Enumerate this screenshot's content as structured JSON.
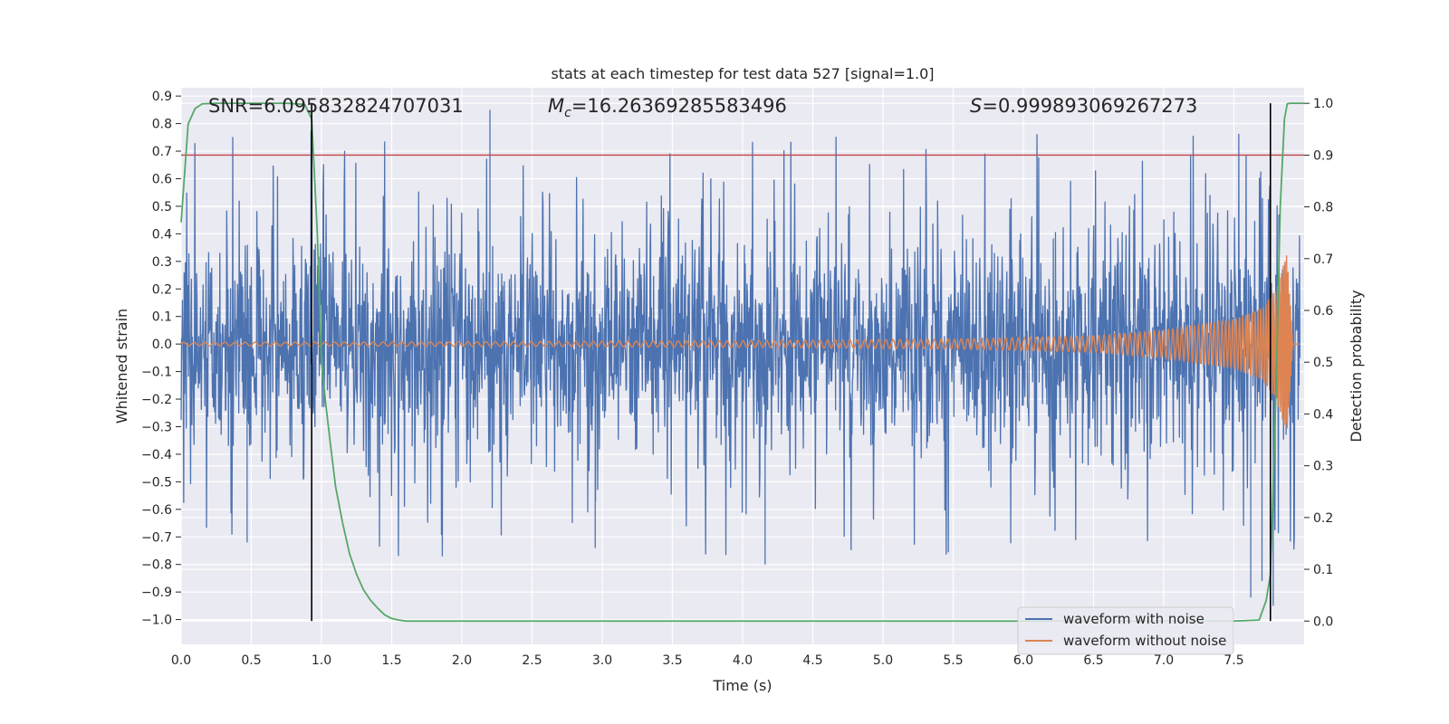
{
  "chart_data": {
    "type": "line",
    "title": "stats at each timestep for test data 527 [signal=1.0]",
    "xlabel": "Time (s)",
    "ylabel": "Whitened strain",
    "ylabel_right": "Detection probability",
    "xlim": [
      0.0,
      8.0
    ],
    "ylim": [
      -1.09,
      0.93
    ],
    "ylim_right": [
      -0.045,
      1.03
    ],
    "x_ticks": [
      0.0,
      0.5,
      1.0,
      1.5,
      2.0,
      2.5,
      3.0,
      3.5,
      4.0,
      4.5,
      5.0,
      5.5,
      6.0,
      6.5,
      7.0,
      7.5
    ],
    "x_tick_labels": [
      "0.0",
      "0.5",
      "1.0",
      "1.5",
      "2.0",
      "2.5",
      "3.0",
      "3.5",
      "4.0",
      "4.5",
      "5.0",
      "5.5",
      "6.0",
      "6.5",
      "7.0",
      "7.5"
    ],
    "y_ticks": [
      0.9,
      0.8,
      0.7,
      0.6,
      0.5,
      0.4,
      0.3,
      0.2,
      0.1,
      0.0,
      -0.1,
      -0.2,
      -0.3,
      -0.4,
      -0.5,
      -0.6,
      -0.7,
      -0.8,
      -0.9,
      -1.0
    ],
    "y_tick_labels": [
      "0.9",
      "0.8",
      "0.7",
      "0.6",
      "0.5",
      "0.4",
      "0.3",
      "0.2",
      "0.1",
      "0.0",
      "−0.1",
      "−0.2",
      "−0.3",
      "−0.4",
      "−0.5",
      "−0.6",
      "−0.7",
      "−0.8",
      "−0.9",
      "−1.0"
    ],
    "y_right_ticks": [
      1.0,
      0.9,
      0.8,
      0.7,
      0.6,
      0.5,
      0.4,
      0.3,
      0.2,
      0.1,
      0.0
    ],
    "y_right_tick_labels": [
      "1.0",
      "0.9",
      "0.8",
      "0.7",
      "0.6",
      "0.5",
      "0.4",
      "0.3",
      "0.2",
      "0.1",
      "0.0"
    ],
    "annotations": {
      "snr": "SNR=6.095832824707031",
      "mc_symbol": "M",
      "mc_subscript": "c",
      "mc_value": "=16.26369285583496",
      "s_symbol": "S",
      "s_value": "=0.999893069267273"
    },
    "threshold": 0.9,
    "vertical_markers": [
      0.93,
      7.76
    ],
    "series": [
      {
        "name": "waveform with noise",
        "color": "#4c72b0",
        "noise_core": 0.27,
        "peak_extreme_max": 0.85,
        "peak_extreme_min": -0.8
      },
      {
        "name": "waveform without noise",
        "color": "#dd8452",
        "envelope": [
          [
            0.0,
            0.006
          ],
          [
            2.0,
            0.008
          ],
          [
            4.0,
            0.012
          ],
          [
            5.5,
            0.018
          ],
          [
            6.5,
            0.03
          ],
          [
            7.0,
            0.05
          ],
          [
            7.5,
            0.09
          ],
          [
            7.7,
            0.13
          ],
          [
            7.8,
            0.2
          ],
          [
            7.88,
            0.33
          ],
          [
            7.92,
            0.0
          ]
        ]
      },
      {
        "name": "Detection probability",
        "color": "#55a868",
        "x": [
          0.0,
          0.05,
          0.1,
          0.15,
          0.25,
          0.4,
          0.6,
          0.75,
          0.88,
          0.93,
          0.97,
          1.0,
          1.03,
          1.06,
          1.1,
          1.15,
          1.2,
          1.25,
          1.3,
          1.35,
          1.4,
          1.45,
          1.5,
          1.55,
          1.6,
          2.0,
          3.0,
          4.0,
          5.0,
          6.0,
          7.0,
          7.5,
          7.68,
          7.73,
          7.76,
          7.8,
          7.83,
          7.86,
          7.88,
          7.9,
          7.95,
          8.0
        ],
        "values": [
          0.77,
          0.96,
          0.99,
          0.999,
          1.0,
          1.0,
          1.0,
          1.0,
          0.998,
          0.97,
          0.75,
          0.5,
          0.42,
          0.35,
          0.26,
          0.19,
          0.13,
          0.09,
          0.06,
          0.04,
          0.025,
          0.012,
          0.005,
          0.002,
          0.0,
          0.0,
          0.0,
          0.0,
          0.0,
          0.0,
          0.0,
          0.0,
          0.002,
          0.04,
          0.09,
          0.45,
          0.8,
          0.97,
          0.999,
          1.0,
          1.0,
          1.0
        ]
      }
    ],
    "legend": {
      "position": "bottom-right",
      "entries": [
        "waveform with noise",
        "waveform without noise"
      ]
    },
    "colors": {
      "background": "#eaeaf2",
      "grid": "#ffffff",
      "threshold": "#c44e52",
      "marker": "#000000"
    }
  }
}
